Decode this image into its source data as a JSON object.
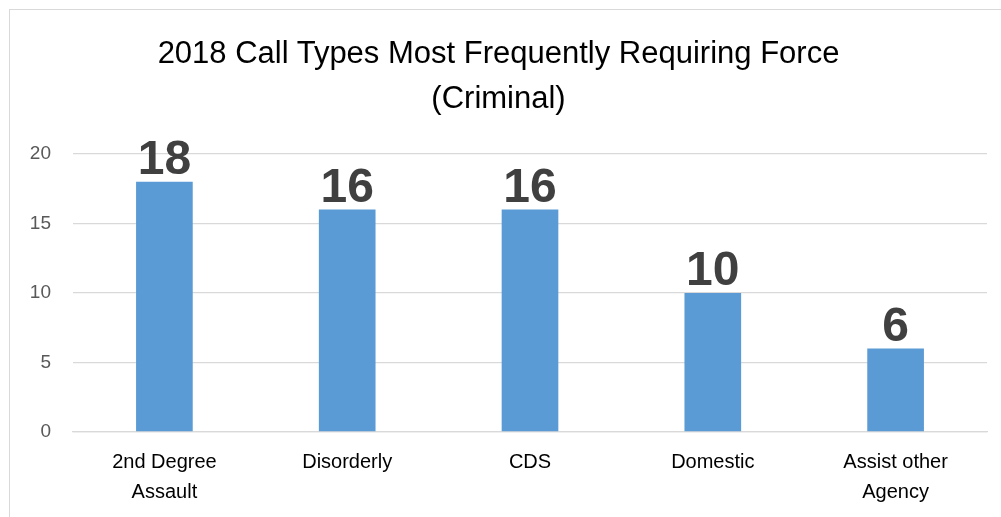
{
  "chart_data": {
    "type": "bar",
    "title": "2018 Call Types Most Frequently Requiring Force (Criminal)",
    "categories": [
      "2nd Degree Assault",
      "Disorderly",
      "CDS",
      "Domestic",
      "Assist other Agency"
    ],
    "values": [
      18,
      16,
      16,
      10,
      6
    ],
    "color": "#5b9bd5",
    "ylim": [
      0,
      20
    ],
    "yticks": [
      0,
      5,
      10,
      15,
      20
    ],
    "grid": "y",
    "data_labels": true
  }
}
